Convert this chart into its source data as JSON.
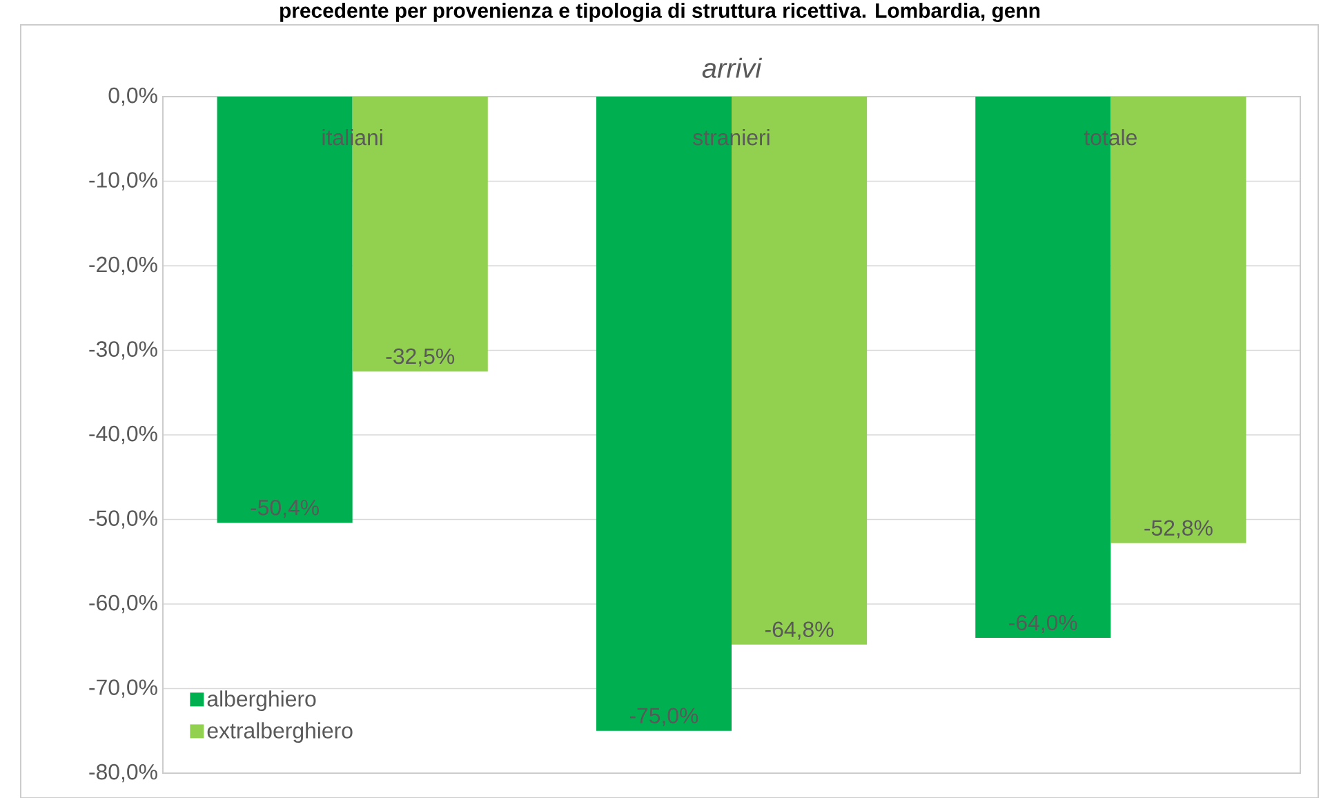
{
  "chart_data": {
    "type": "bar",
    "title": "arrivi",
    "annotations": [
      "precedente per provenienza e tipologia di struttura ricettiva. Lombardia, genn"
    ],
    "categories": [
      "italiani",
      "stranieri",
      "totale"
    ],
    "series": [
      {
        "name": "alberghiero",
        "color": "#00b050",
        "values": [
          -50.4,
          -75.0,
          -64.0
        ],
        "value_labels": [
          "-50,4%",
          "-75,0%",
          "-64,0%"
        ]
      },
      {
        "name": "extralberghiero",
        "color": "#92d050",
        "values": [
          -32.5,
          -64.8,
          -52.8
        ],
        "value_labels": [
          "-32,5%",
          "-64,8%",
          "-52,8%"
        ]
      }
    ],
    "ylim": [
      -80,
      0
    ],
    "yticks": [
      {
        "value": 0,
        "label": "0,0%"
      },
      {
        "value": -10,
        "label": "-10,0%"
      },
      {
        "value": -20,
        "label": "-20,0%"
      },
      {
        "value": -30,
        "label": "-30,0%"
      },
      {
        "value": -40,
        "label": "-40,0%"
      },
      {
        "value": -50,
        "label": "-50,0%"
      },
      {
        "value": -60,
        "label": "-60,0%"
      },
      {
        "value": -70,
        "label": "-70,0%"
      },
      {
        "value": -80,
        "label": "-80,0%"
      }
    ],
    "grid": "y",
    "legend": "bottom left"
  }
}
